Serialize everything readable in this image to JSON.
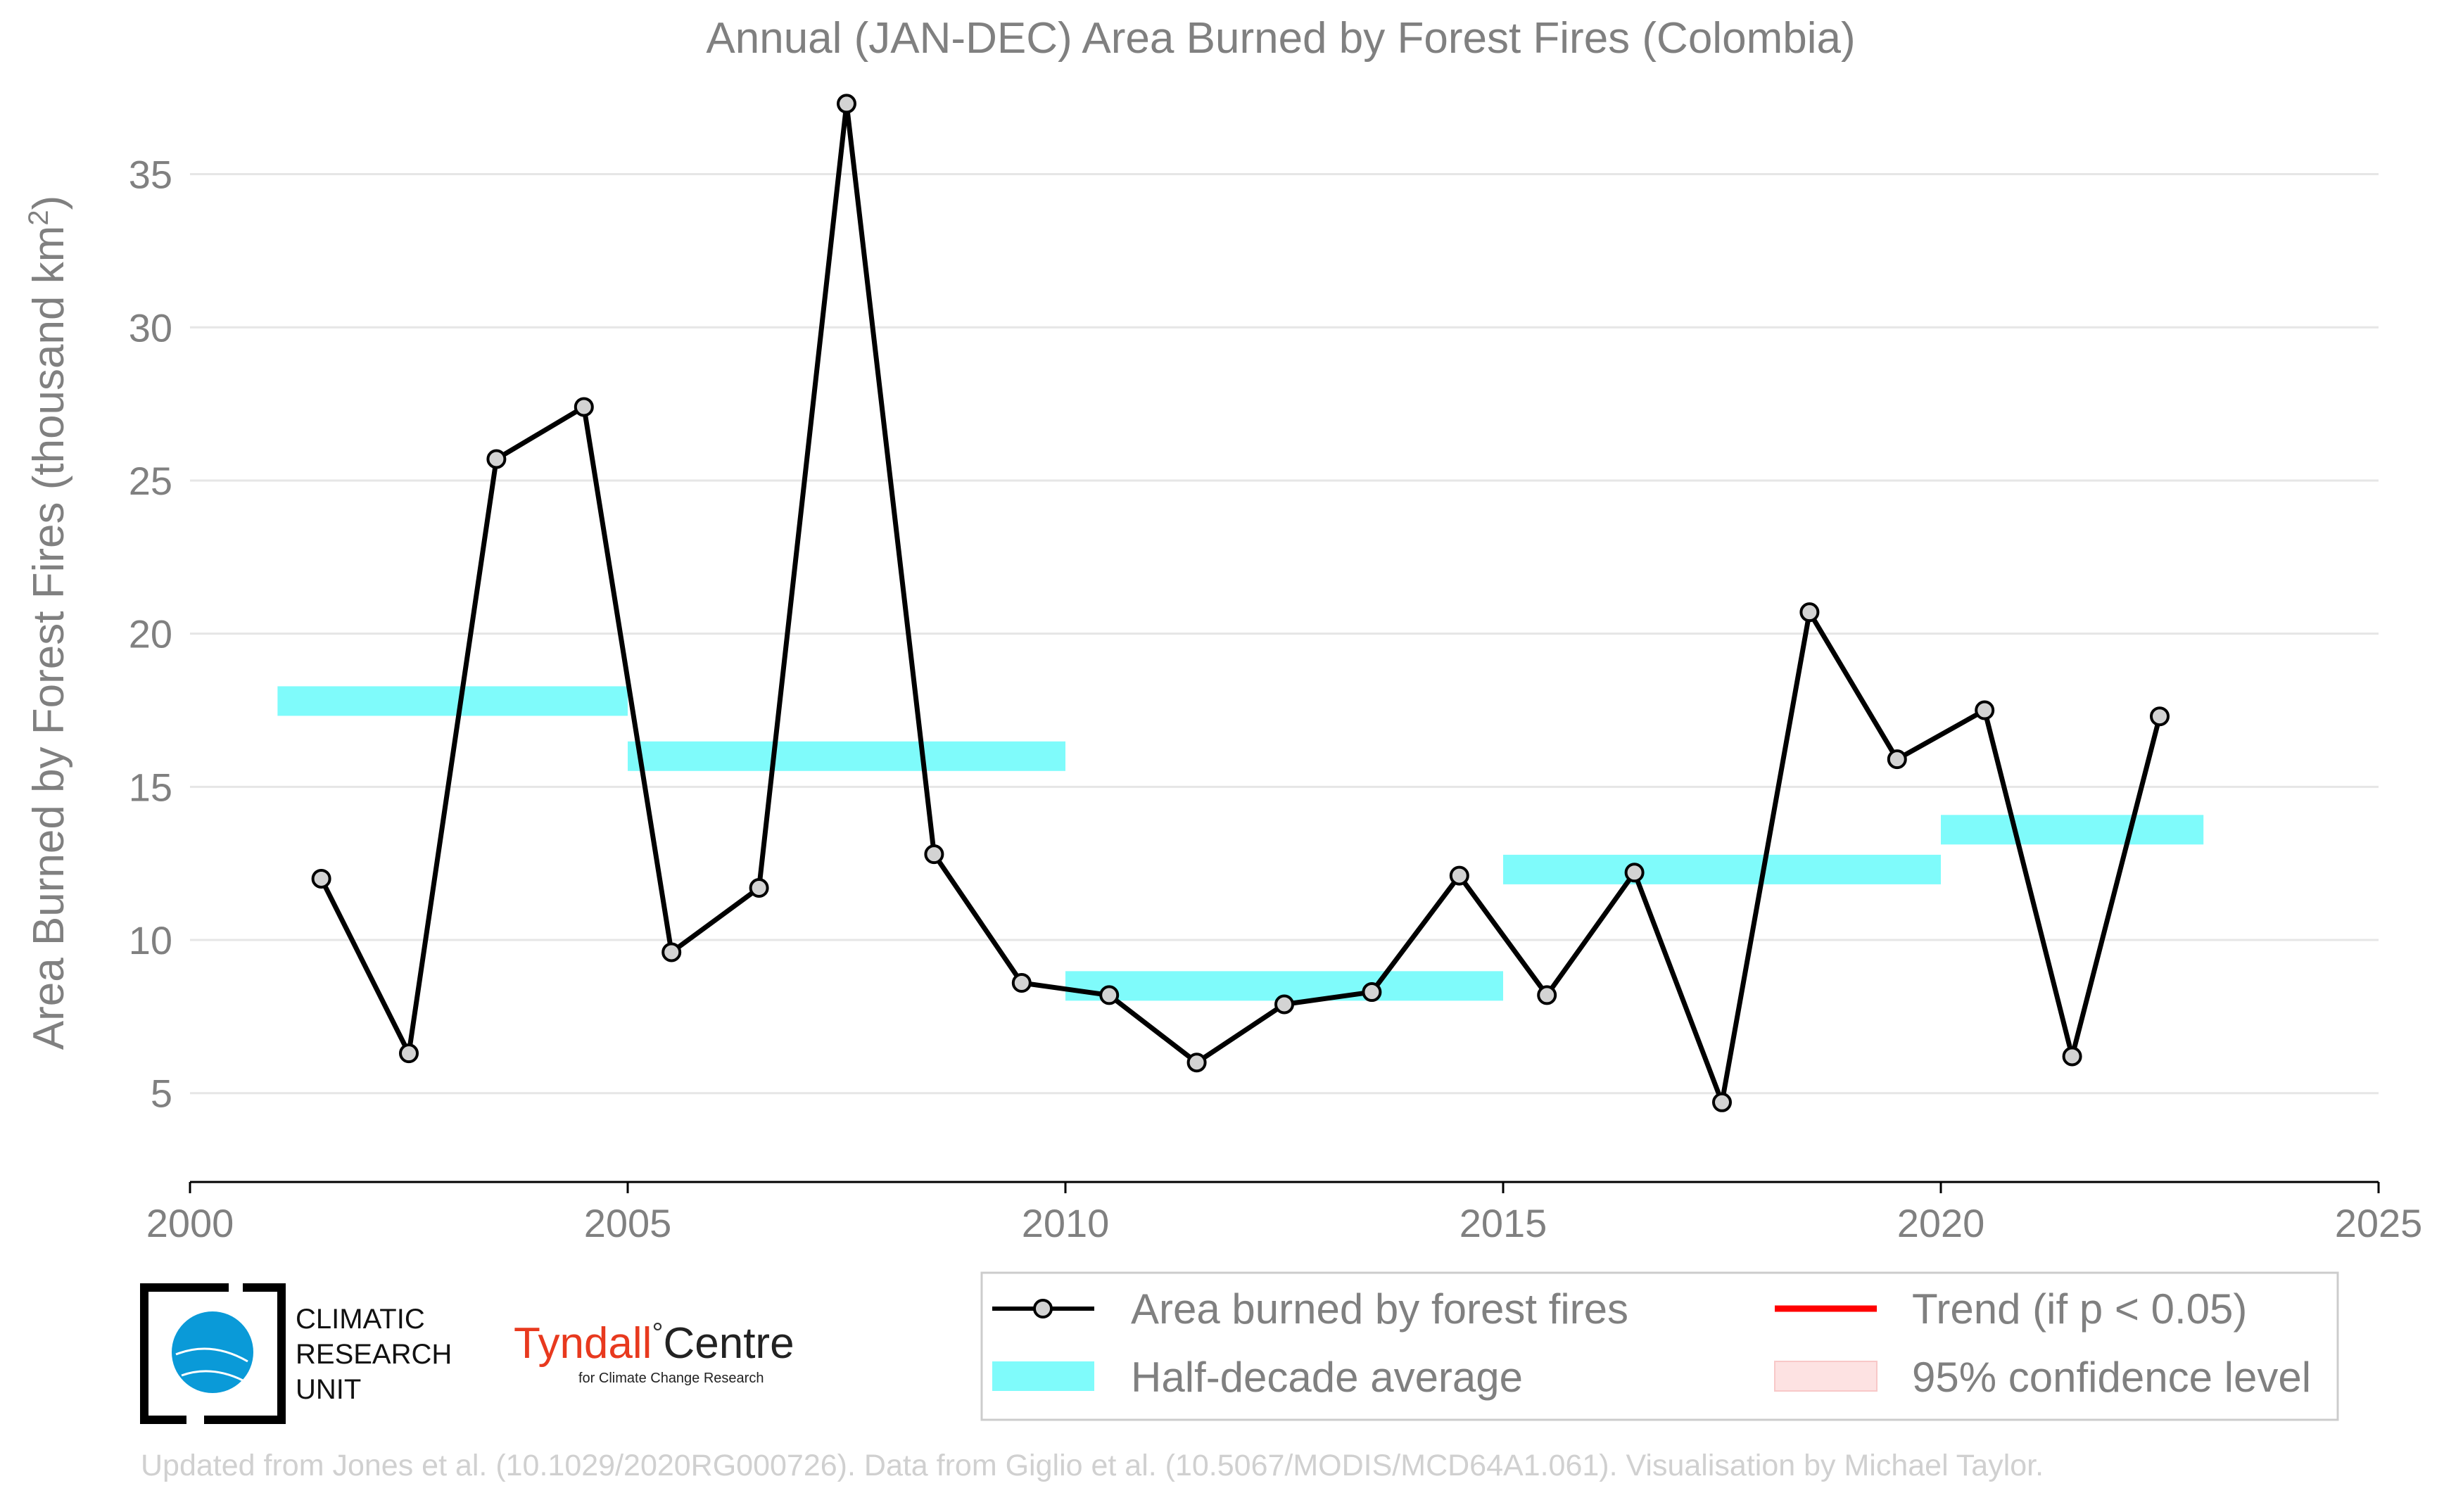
{
  "chart_data": {
    "type": "line",
    "title": "Annual (JAN-DEC) Area Burned by Forest Fires (Colombia)",
    "xlabel": "",
    "ylabel": "Area Burned by Forest Fires (thousand km",
    "ylabel_superscript": "2",
    "ylabel_close": ")",
    "xlim": [
      2000,
      2025
    ],
    "ylim": [
      2.1,
      37.7
    ],
    "x_ticks": [
      2000,
      2005,
      2010,
      2015,
      2020,
      2025
    ],
    "y_ticks": [
      5,
      10,
      15,
      20,
      25,
      30,
      35
    ],
    "grid": "horizontal",
    "legend_position": "bottom-right",
    "series": [
      {
        "name": "Area burned by forest fires",
        "style": "line-with-markers",
        "color": "#000000",
        "marker_fill": "#d3d3d3",
        "x": [
          2001.5,
          2002.5,
          2003.5,
          2004.5,
          2005.5,
          2006.5,
          2007.5,
          2008.5,
          2009.5,
          2010.5,
          2011.5,
          2012.5,
          2013.5,
          2014.5,
          2015.5,
          2016.5,
          2017.5,
          2018.5,
          2019.5,
          2020.5,
          2021.5,
          2022.5
        ],
        "values": [
          12.0,
          6.3,
          25.7,
          27.4,
          9.6,
          11.7,
          37.3,
          12.8,
          8.6,
          8.2,
          6.0,
          7.9,
          8.3,
          12.1,
          8.2,
          12.2,
          4.7,
          20.7,
          15.9,
          17.5,
          6.2,
          17.3
        ]
      },
      {
        "name": "Half-decade average",
        "style": "horizontal-bands",
        "color": "#7ffbfb",
        "segments": [
          {
            "x_start": 2001,
            "x_end": 2005,
            "value": 17.8
          },
          {
            "x_start": 2005,
            "x_end": 2010,
            "value": 16.0
          },
          {
            "x_start": 2010,
            "x_end": 2015,
            "value": 8.5
          },
          {
            "x_start": 2015,
            "x_end": 2020,
            "value": 12.3
          },
          {
            "x_start": 2020,
            "x_end": 2023,
            "value": 13.6
          }
        ]
      }
    ],
    "legend": [
      {
        "label": "Area burned by forest fires",
        "symbol": "line-marker",
        "color": "#000000"
      },
      {
        "label": "Trend (if p < 0.05)",
        "symbol": "line",
        "color": "#ff0000"
      },
      {
        "label": "Half-decade average",
        "symbol": "patch",
        "color": "#7ffbfb"
      },
      {
        "label": "95% confidence level",
        "symbol": "patch",
        "color": "#fde2e2"
      }
    ]
  },
  "logos": {
    "cru_lines": [
      "CLIMATIC",
      "RESEARCH",
      "UNIT"
    ],
    "tyndall_name": "Tyndall",
    "tyndall_degree": "°",
    "tyndall_centre": "Centre",
    "tyndall_subtitle": "for Climate Change Research"
  },
  "credit": "Updated from Jones et al. (10.1029/2020RG000726). Data from Giglio et al. (10.5067/MODIS/MCD64A1.061). Visualisation by Michael Taylor.",
  "colors": {
    "text_gray": "#808080",
    "grid": "#e6e6e6",
    "axis": "#000000",
    "series_line": "#000000",
    "marker_fill": "#d3d3d3",
    "band": "#7ffbfb",
    "trend": "#ff0000",
    "confidence": "#fde2e2",
    "cru_blue": "#0a9ad8",
    "tyndall_red": "#e8391e"
  }
}
